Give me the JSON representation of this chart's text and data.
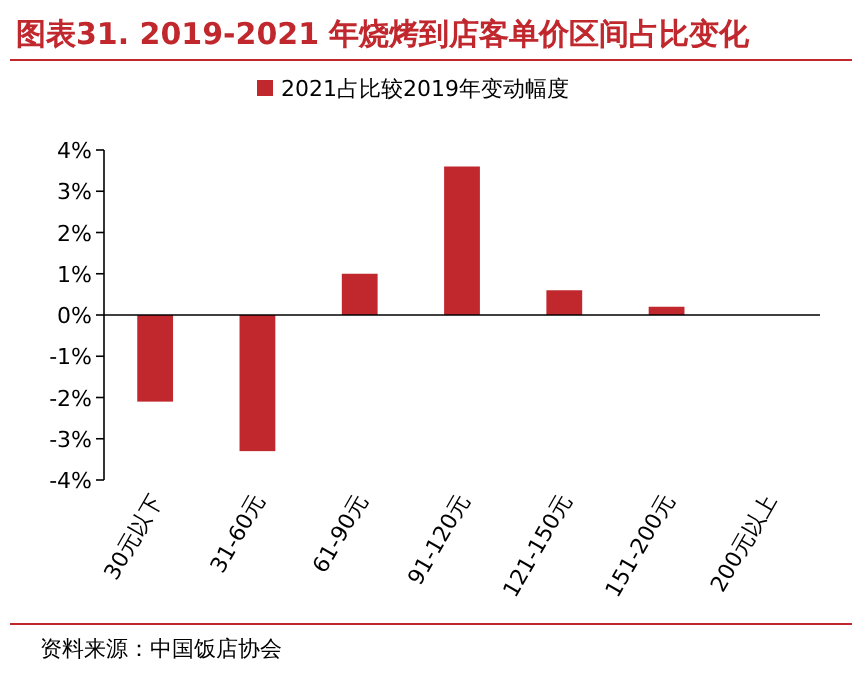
{
  "chart_data": {
    "type": "bar",
    "title": "图表31. 2019-2021 年烧烤到店客单价区间占比变化",
    "categories": [
      "30元以下",
      "31-60元",
      "61-90元",
      "91-120元",
      "121-150元",
      "151-200元",
      "200元以上"
    ],
    "series": [
      {
        "name": "2021占比较2019年变动幅度",
        "color": "#c0282e",
        "values": [
          -2.1,
          -3.3,
          1.0,
          3.6,
          0.6,
          0.2,
          0
        ]
      }
    ],
    "ylim": [
      -4,
      4
    ],
    "yticks": [
      {
        "value": -4,
        "label": "-4%"
      },
      {
        "value": -3,
        "label": "-3%"
      },
      {
        "value": -2,
        "label": "-2%"
      },
      {
        "value": -1,
        "label": "-1%"
      },
      {
        "value": 0,
        "label": "0%"
      },
      {
        "value": 1,
        "label": "1%"
      },
      {
        "value": 2,
        "label": "2%"
      },
      {
        "value": 3,
        "label": "3%"
      },
      {
        "value": 4,
        "label": "4%"
      }
    ],
    "legend": "top",
    "annotations": [
      "资料来源：中国饭店协会"
    ]
  }
}
